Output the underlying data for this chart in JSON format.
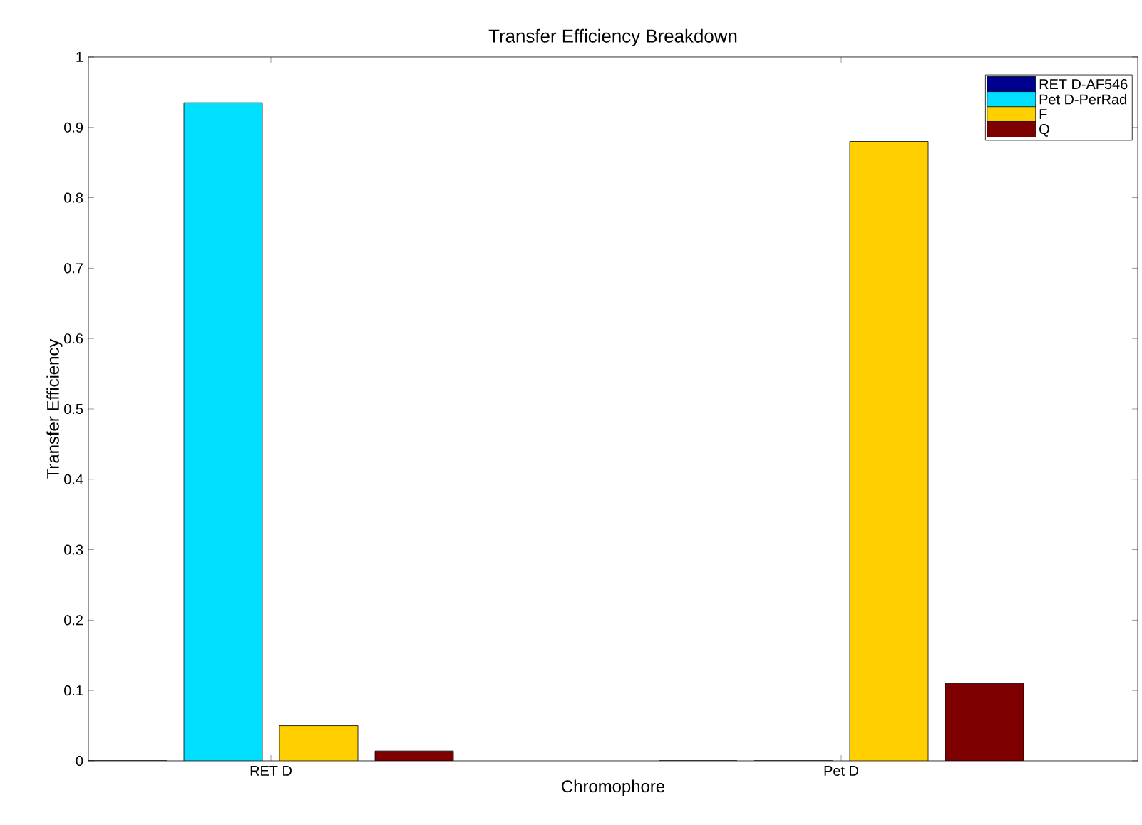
{
  "chart_data": {
    "type": "bar",
    "title": "Transfer Efficiency Breakdown",
    "xlabel": "Chromophore",
    "ylabel": "Transfer Efficiency",
    "categories": [
      "RET D",
      "Pet D"
    ],
    "series": [
      {
        "name": "RET D-AF546",
        "color": "#00008f",
        "values": [
          0,
          0
        ]
      },
      {
        "name": "Pet D-PerRad",
        "color": "#00dfff",
        "values": [
          0.935,
          0
        ]
      },
      {
        "name": "F",
        "color": "#ffcf00",
        "values": [
          0.05,
          0.88
        ]
      },
      {
        "name": "Q",
        "color": "#7f0000",
        "values": [
          0.014,
          0.11
        ]
      }
    ],
    "ylim": [
      0,
      1
    ],
    "yticks": [
      0,
      0.1,
      0.2,
      0.3,
      0.4,
      0.5,
      0.6,
      0.7,
      0.8,
      0.9,
      1
    ],
    "grid": false,
    "legend": "top right"
  }
}
